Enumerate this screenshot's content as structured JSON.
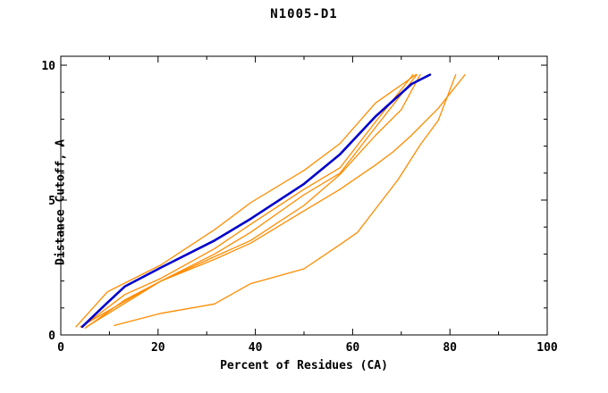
{
  "title": "N1005-D1",
  "chart_data": {
    "type": "line",
    "title": "N1005-D1",
    "xlabel": "Percent of Residues (CA)",
    "ylabel": "Distance Cutoff, A",
    "xlim": [
      0,
      100
    ],
    "ylim": [
      0,
      10
    ],
    "x_major_ticks": [
      0,
      20,
      40,
      60,
      80,
      100
    ],
    "x_minor_step": 10,
    "y_major_ticks": [
      0,
      5,
      10
    ],
    "y_minor_step": 1,
    "grid": false,
    "legend_position": "none",
    "colors": {
      "model_lines": "#ff8c00",
      "reference_line": "#0000cd",
      "axis": "#000000",
      "background": "#ffffff"
    },
    "series": [
      {
        "name": "orange-top",
        "color": "#ff8c00",
        "line_width": 1.3,
        "points": [
          [
            3.1,
            0.3
          ],
          [
            9.6,
            1.6
          ],
          [
            20.6,
            2.6
          ],
          [
            31.6,
            3.9
          ],
          [
            39,
            4.9
          ],
          [
            50,
            6.1
          ],
          [
            57.4,
            7.1
          ],
          [
            64.7,
            8.6
          ],
          [
            73,
            9.65
          ]
        ]
      },
      {
        "name": "orange-pair-1",
        "color": "#ff8c00",
        "line_width": 1.3,
        "points": [
          [
            4.4,
            0.3
          ],
          [
            13.2,
            1.5
          ],
          [
            20.6,
            2.1
          ],
          [
            31.6,
            3.2
          ],
          [
            39,
            4.1
          ],
          [
            50,
            5.4
          ],
          [
            57.4,
            6.2
          ],
          [
            64.7,
            7.9
          ],
          [
            72.4,
            9.65
          ]
        ]
      },
      {
        "name": "orange-pair-2",
        "color": "#ff8c00",
        "line_width": 1.3,
        "points": [
          [
            5,
            0.25
          ],
          [
            13.2,
            1.3
          ],
          [
            20.6,
            2.0
          ],
          [
            31.6,
            3.0
          ],
          [
            39,
            3.8
          ],
          [
            50,
            5.2
          ],
          [
            57.4,
            6.0
          ],
          [
            64.7,
            7.7
          ],
          [
            73.2,
            9.65
          ]
        ]
      },
      {
        "name": "orange-mid",
        "color": "#ff8c00",
        "line_width": 1.3,
        "points": [
          [
            4,
            0.3
          ],
          [
            13.2,
            1.25
          ],
          [
            20.6,
            2.0
          ],
          [
            31.6,
            2.9
          ],
          [
            39,
            3.5
          ],
          [
            50,
            4.8
          ],
          [
            57.4,
            5.95
          ],
          [
            64.7,
            7.4
          ],
          [
            70,
            8.35
          ],
          [
            73.9,
            9.65
          ]
        ]
      },
      {
        "name": "orange-right-shallow",
        "color": "#ff8c00",
        "line_width": 1.3,
        "points": [
          [
            5.3,
            0.3
          ],
          [
            20.6,
            2.0
          ],
          [
            31.6,
            2.8
          ],
          [
            39,
            3.4
          ],
          [
            50,
            4.6
          ],
          [
            57.4,
            5.4
          ],
          [
            64.7,
            6.3
          ],
          [
            68.4,
            6.8
          ],
          [
            72.1,
            7.4
          ],
          [
            77.6,
            8.4
          ],
          [
            83.1,
            9.65
          ]
        ]
      },
      {
        "name": "orange-low-late-start",
        "color": "#ff8c00",
        "line_width": 1.3,
        "points": [
          [
            11,
            0.35
          ],
          [
            20.6,
            0.8
          ],
          [
            31.6,
            1.15
          ],
          [
            39,
            1.9
          ],
          [
            50,
            2.45
          ],
          [
            57.4,
            3.35
          ],
          [
            61,
            3.8
          ],
          [
            69.3,
            5.75
          ],
          [
            73.9,
            7.05
          ],
          [
            77.6,
            7.95
          ],
          [
            81.2,
            9.65
          ]
        ]
      },
      {
        "name": "blue-main",
        "color": "#0000cd",
        "line_width": 2.6,
        "points": [
          [
            4.4,
            0.3
          ],
          [
            9.6,
            1.2
          ],
          [
            13.2,
            1.8
          ],
          [
            20.6,
            2.5
          ],
          [
            31.6,
            3.5
          ],
          [
            39,
            4.3
          ],
          [
            50,
            5.6
          ],
          [
            57.4,
            6.7
          ],
          [
            64.7,
            8.1
          ],
          [
            72.1,
            9.3
          ],
          [
            75.9,
            9.65
          ]
        ]
      }
    ]
  }
}
